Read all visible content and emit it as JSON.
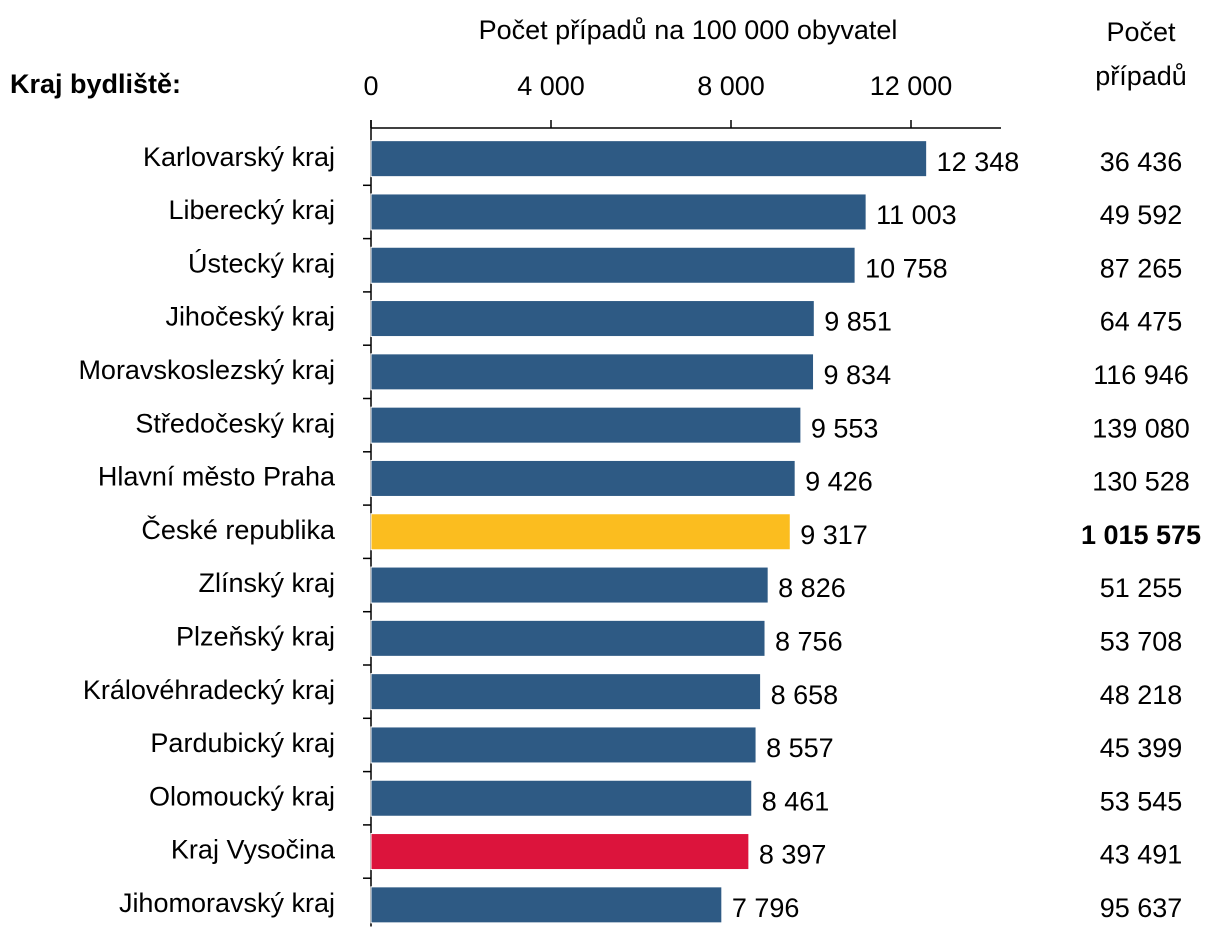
{
  "chart_data": {
    "type": "bar",
    "orientation": "horizontal",
    "title": "Počet případů na 100 000 obyvatel",
    "category_title": "Kraj bydliště:",
    "categories": [
      "Karlovarský kraj",
      "Liberecký kraj",
      "Ústecký kraj",
      "Jihočeský kraj",
      "Moravskoslezský kraj",
      "Středočeský kraj",
      "Hlavní město Praha",
      "České republika",
      "Zlínský kraj",
      "Plzeňský kraj",
      "Královéhradecký kraj",
      "Pardubický kraj",
      "Olomoucký kraj",
      "Kraj Vysočina",
      "Jihomoravský kraj"
    ],
    "values": [
      12348,
      11003,
      10758,
      9851,
      9834,
      9553,
      9426,
      9317,
      8826,
      8756,
      8658,
      8557,
      8461,
      8397,
      7796
    ],
    "value_labels": [
      "12 348",
      "11 003",
      "10 758",
      "9 851",
      "9 834",
      "9 553",
      "9 426",
      "9 317",
      "8 826",
      "8 756",
      "8 658",
      "8 557",
      "8 461",
      "8 397",
      "7 796"
    ],
    "colors": [
      "#2e5a84",
      "#2e5a84",
      "#2e5a84",
      "#2e5a84",
      "#2e5a84",
      "#2e5a84",
      "#2e5a84",
      "#fbbd1f",
      "#2e5a84",
      "#2e5a84",
      "#2e5a84",
      "#2e5a84",
      "#2e5a84",
      "#dc143c",
      "#2e5a84"
    ],
    "xlim": [
      0,
      14000
    ],
    "xticks": [
      0,
      {
        "value": 4000,
        "label": "4 000"
      },
      {
        "value": 8000,
        "label": "8 000"
      },
      {
        "value": 12000,
        "label": "12 000"
      }
    ],
    "count_title": "Počet případů",
    "counts": [
      "36 436",
      "49 592",
      "87 265",
      "64 475",
      "116 946",
      "139 080",
      "130 528",
      "1 015 575",
      "51 255",
      "53 708",
      "48 218",
      "45 399",
      "53 545",
      "43 491",
      "95 637"
    ],
    "bold_counts": [
      7
    ]
  }
}
